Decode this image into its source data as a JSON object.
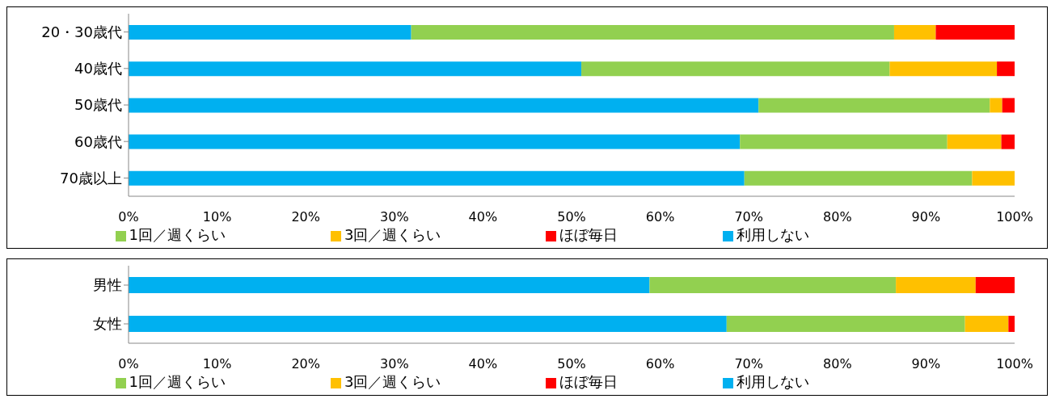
{
  "chart_data": [
    {
      "type": "bar",
      "orientation": "horizontal",
      "stacked": true,
      "categories": [
        "20・30歳代",
        "40歳代",
        "50歳代",
        "60歳代",
        "70歳以上"
      ],
      "series": [
        {
          "name": "利用しない",
          "color": "#00b0f0",
          "values": [
            31.9,
            51.1,
            71.1,
            69.0,
            69.5
          ]
        },
        {
          "name": "1回／週くらい",
          "color": "#92d050",
          "values": [
            54.5,
            34.8,
            26.1,
            23.4,
            25.7
          ]
        },
        {
          "name": "3回／週くらい",
          "color": "#ffc000",
          "values": [
            4.7,
            12.1,
            1.4,
            6.1,
            4.8
          ]
        },
        {
          "name": "ほぼ毎日",
          "color": "#ff0000",
          "values": [
            8.9,
            2.0,
            1.4,
            1.5,
            0
          ]
        }
      ],
      "xlim": [
        0,
        100
      ],
      "xticks": [
        {
          "value": 0,
          "label": "0%"
        },
        {
          "value": 10,
          "label": "10%"
        },
        {
          "value": 20,
          "label": "20%"
        },
        {
          "value": 30,
          "label": "30%"
        },
        {
          "value": 40,
          "label": "40%"
        },
        {
          "value": 50,
          "label": "50%"
        },
        {
          "value": 60,
          "label": "60%"
        },
        {
          "value": 70,
          "label": "70%"
        },
        {
          "value": 80,
          "label": "80%"
        },
        {
          "value": 90,
          "label": "90%"
        },
        {
          "value": 100,
          "label": "100%"
        }
      ],
      "grid": false,
      "legend": "bottom"
    },
    {
      "type": "bar",
      "orientation": "horizontal",
      "stacked": true,
      "categories": [
        "男性",
        "女性"
      ],
      "series": [
        {
          "name": "利用しない",
          "color": "#00b0f0",
          "values": [
            58.8,
            67.5
          ]
        },
        {
          "name": "1回／週くらい",
          "color": "#92d050",
          "values": [
            27.8,
            26.9
          ]
        },
        {
          "name": "3回／週くらい",
          "color": "#ffc000",
          "values": [
            9.0,
            4.9
          ]
        },
        {
          "name": "ほぼ毎日",
          "color": "#ff0000",
          "values": [
            4.4,
            0.7
          ]
        }
      ],
      "xlim": [
        0,
        100
      ],
      "xticks": [
        {
          "value": 0,
          "label": "0%"
        },
        {
          "value": 10,
          "label": "10%"
        },
        {
          "value": 20,
          "label": "20%"
        },
        {
          "value": 30,
          "label": "30%"
        },
        {
          "value": 40,
          "label": "40%"
        },
        {
          "value": 50,
          "label": "50%"
        },
        {
          "value": 60,
          "label": "60%"
        },
        {
          "value": 70,
          "label": "70%"
        },
        {
          "value": 80,
          "label": "80%"
        },
        {
          "value": 90,
          "label": "90%"
        },
        {
          "value": 100,
          "label": "100%"
        }
      ],
      "grid": false,
      "legend": "bottom"
    }
  ]
}
